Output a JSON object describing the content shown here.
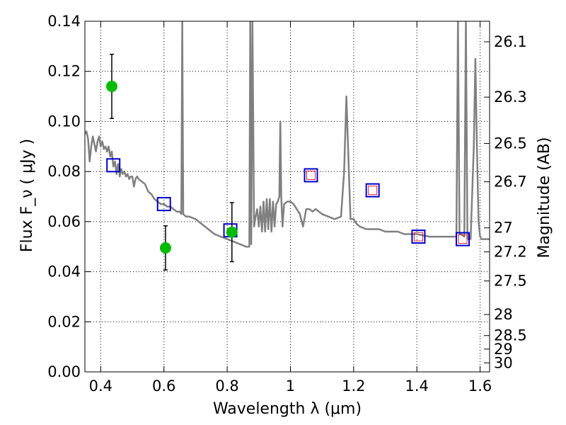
{
  "chart_data": {
    "type": "scatter",
    "xlabel": "Wavelength  λ (μm)",
    "ylabel": "Flux  F_ν  ( μJy )",
    "ylabel_right": "Magnitude (AB)",
    "xlim": [
      0.35,
      1.63
    ],
    "ylim": [
      0.0,
      0.14
    ],
    "grid": true,
    "x_ticks": [
      0.4,
      0.6,
      0.8,
      1.0,
      1.2,
      1.4,
      1.6
    ],
    "x_tick_labels": [
      "0.4",
      "0.6",
      "0.8",
      "1",
      "1.2",
      "1.4",
      "1.6"
    ],
    "y_ticks": [
      0.0,
      0.02,
      0.04,
      0.06,
      0.08,
      0.1,
      0.12,
      0.14
    ],
    "y_tick_labels": [
      "0.00",
      "0.02",
      "0.04",
      "0.06",
      "0.08",
      "0.10",
      "0.12",
      "0.14"
    ],
    "right_ticks": [
      {
        "label": "26.1",
        "flux": 0.1318
      },
      {
        "label": "26.3",
        "flux": 0.1097
      },
      {
        "label": "26.5",
        "flux": 0.0912
      },
      {
        "label": "26.7",
        "flux": 0.0759
      },
      {
        "label": "27",
        "flux": 0.0575
      },
      {
        "label": "27.2",
        "flux": 0.0479
      },
      {
        "label": "27.5",
        "flux": 0.0363
      },
      {
        "label": "28",
        "flux": 0.0229
      },
      {
        "label": "28.5",
        "flux": 0.0145
      },
      {
        "label": "29",
        "flux": 0.0091
      },
      {
        "label": "30",
        "flux": 0.0036
      }
    ],
    "series": [
      {
        "kind": "line",
        "color": "#808080",
        "points": [
          [
            0.35,
            0.095
          ],
          [
            0.355,
            0.096
          ],
          [
            0.36,
            0.093
          ],
          [
            0.365,
            0.084
          ],
          [
            0.37,
            0.09
          ],
          [
            0.375,
            0.094
          ],
          [
            0.38,
            0.091
          ],
          [
            0.385,
            0.088
          ],
          [
            0.39,
            0.092
          ],
          [
            0.395,
            0.094
          ],
          [
            0.4,
            0.09
          ],
          [
            0.405,
            0.092
          ],
          [
            0.41,
            0.089
          ],
          [
            0.415,
            0.09
          ],
          [
            0.42,
            0.088
          ],
          [
            0.425,
            0.09
          ],
          [
            0.43,
            0.086
          ],
          [
            0.435,
            0.088
          ],
          [
            0.44,
            0.082
          ],
          [
            0.445,
            0.084
          ],
          [
            0.45,
            0.079
          ],
          [
            0.455,
            0.083
          ],
          [
            0.46,
            0.078
          ],
          [
            0.465,
            0.081
          ],
          [
            0.47,
            0.079
          ],
          [
            0.475,
            0.08
          ],
          [
            0.48,
            0.078
          ],
          [
            0.485,
            0.079
          ],
          [
            0.49,
            0.077
          ],
          [
            0.495,
            0.078
          ],
          [
            0.5,
            0.078
          ],
          [
            0.505,
            0.074
          ],
          [
            0.51,
            0.077
          ],
          [
            0.515,
            0.078
          ],
          [
            0.52,
            0.077
          ],
          [
            0.53,
            0.076
          ],
          [
            0.54,
            0.075
          ],
          [
            0.55,
            0.072
          ],
          [
            0.56,
            0.071
          ],
          [
            0.57,
            0.069
          ],
          [
            0.58,
            0.068
          ],
          [
            0.59,
            0.067
          ],
          [
            0.6,
            0.067
          ],
          [
            0.61,
            0.066
          ],
          [
            0.62,
            0.066
          ],
          [
            0.63,
            0.065
          ],
          [
            0.64,
            0.064
          ],
          [
            0.65,
            0.064
          ],
          [
            0.655,
            0.063
          ],
          [
            0.658,
            0.14
          ],
          [
            0.661,
            0.063
          ],
          [
            0.67,
            0.062
          ],
          [
            0.68,
            0.062
          ],
          [
            0.7,
            0.061
          ],
          [
            0.72,
            0.059
          ],
          [
            0.74,
            0.057
          ],
          [
            0.76,
            0.055
          ],
          [
            0.78,
            0.054
          ],
          [
            0.8,
            0.053
          ],
          [
            0.82,
            0.052
          ],
          [
            0.84,
            0.051
          ],
          [
            0.86,
            0.05
          ],
          [
            0.87,
            0.05
          ],
          [
            0.873,
            0.14
          ],
          [
            0.876,
            0.051
          ],
          [
            0.88,
            0.14
          ],
          [
            0.885,
            0.058
          ],
          [
            0.89,
            0.062
          ],
          [
            0.895,
            0.065
          ],
          [
            0.9,
            0.058
          ],
          [
            0.905,
            0.066
          ],
          [
            0.91,
            0.056
          ],
          [
            0.915,
            0.068
          ],
          [
            0.92,
            0.056
          ],
          [
            0.925,
            0.069
          ],
          [
            0.93,
            0.057
          ],
          [
            0.935,
            0.069
          ],
          [
            0.94,
            0.056
          ],
          [
            0.945,
            0.068
          ],
          [
            0.95,
            0.058
          ],
          [
            0.955,
            0.067
          ],
          [
            0.96,
            0.068
          ],
          [
            0.965,
            0.07
          ],
          [
            0.968,
            0.1
          ],
          [
            0.971,
            0.07
          ],
          [
            0.975,
            0.058
          ],
          [
            0.98,
            0.067
          ],
          [
            0.99,
            0.068
          ],
          [
            1.0,
            0.068
          ],
          [
            1.01,
            0.067
          ],
          [
            1.02,
            0.065
          ],
          [
            1.03,
            0.063
          ],
          [
            1.04,
            0.058
          ],
          [
            1.05,
            0.065
          ],
          [
            1.06,
            0.065
          ],
          [
            1.07,
            0.064
          ],
          [
            1.08,
            0.065
          ],
          [
            1.09,
            0.064
          ],
          [
            1.1,
            0.063
          ],
          [
            1.12,
            0.062
          ],
          [
            1.14,
            0.061
          ],
          [
            1.16,
            0.062
          ],
          [
            1.17,
            0.08
          ],
          [
            1.177,
            0.11
          ],
          [
            1.185,
            0.08
          ],
          [
            1.19,
            0.061
          ],
          [
            1.2,
            0.061
          ],
          [
            1.21,
            0.059
          ],
          [
            1.22,
            0.058
          ],
          [
            1.24,
            0.057
          ],
          [
            1.26,
            0.057
          ],
          [
            1.28,
            0.057
          ],
          [
            1.3,
            0.056
          ],
          [
            1.32,
            0.056
          ],
          [
            1.34,
            0.056
          ],
          [
            1.36,
            0.055
          ],
          [
            1.38,
            0.055
          ],
          [
            1.4,
            0.055
          ],
          [
            1.44,
            0.054
          ],
          [
            1.48,
            0.054
          ],
          [
            1.52,
            0.054
          ],
          [
            1.525,
            0.054
          ],
          [
            1.53,
            0.14
          ],
          [
            1.535,
            0.055
          ],
          [
            1.54,
            0.055
          ],
          [
            1.55,
            0.054
          ],
          [
            1.555,
            0.14
          ],
          [
            1.56,
            0.053
          ],
          [
            1.57,
            0.053
          ],
          [
            1.58,
            0.09
          ],
          [
            1.585,
            0.125
          ],
          [
            1.59,
            0.09
          ],
          [
            1.595,
            0.06
          ],
          [
            1.6,
            0.054
          ],
          [
            1.605,
            0.053
          ],
          [
            1.61,
            0.053
          ],
          [
            1.62,
            0.053
          ],
          [
            1.63,
            0.053
          ]
        ]
      },
      {
        "kind": "squares-blue",
        "color": "#0000cc",
        "points": [
          [
            0.44,
            0.0825
          ],
          [
            0.6,
            0.067
          ],
          [
            0.81,
            0.0565
          ],
          [
            1.065,
            0.0785
          ],
          [
            1.26,
            0.0725
          ],
          [
            1.405,
            0.054
          ],
          [
            1.545,
            0.053
          ]
        ]
      },
      {
        "kind": "squares-red",
        "color": "#e0203a",
        "points": [
          [
            1.065,
            0.0785
          ],
          [
            1.26,
            0.0725
          ],
          [
            1.405,
            0.054
          ],
          [
            1.545,
            0.053
          ]
        ]
      },
      {
        "kind": "points-green",
        "color": "#00bb00",
        "points": [
          {
            "x": 0.435,
            "y": 0.114,
            "err": 0.0128
          },
          {
            "x": 0.605,
            "y": 0.0495,
            "err": 0.0088
          },
          {
            "x": 0.815,
            "y": 0.0558,
            "err": 0.0118
          }
        ]
      }
    ]
  }
}
